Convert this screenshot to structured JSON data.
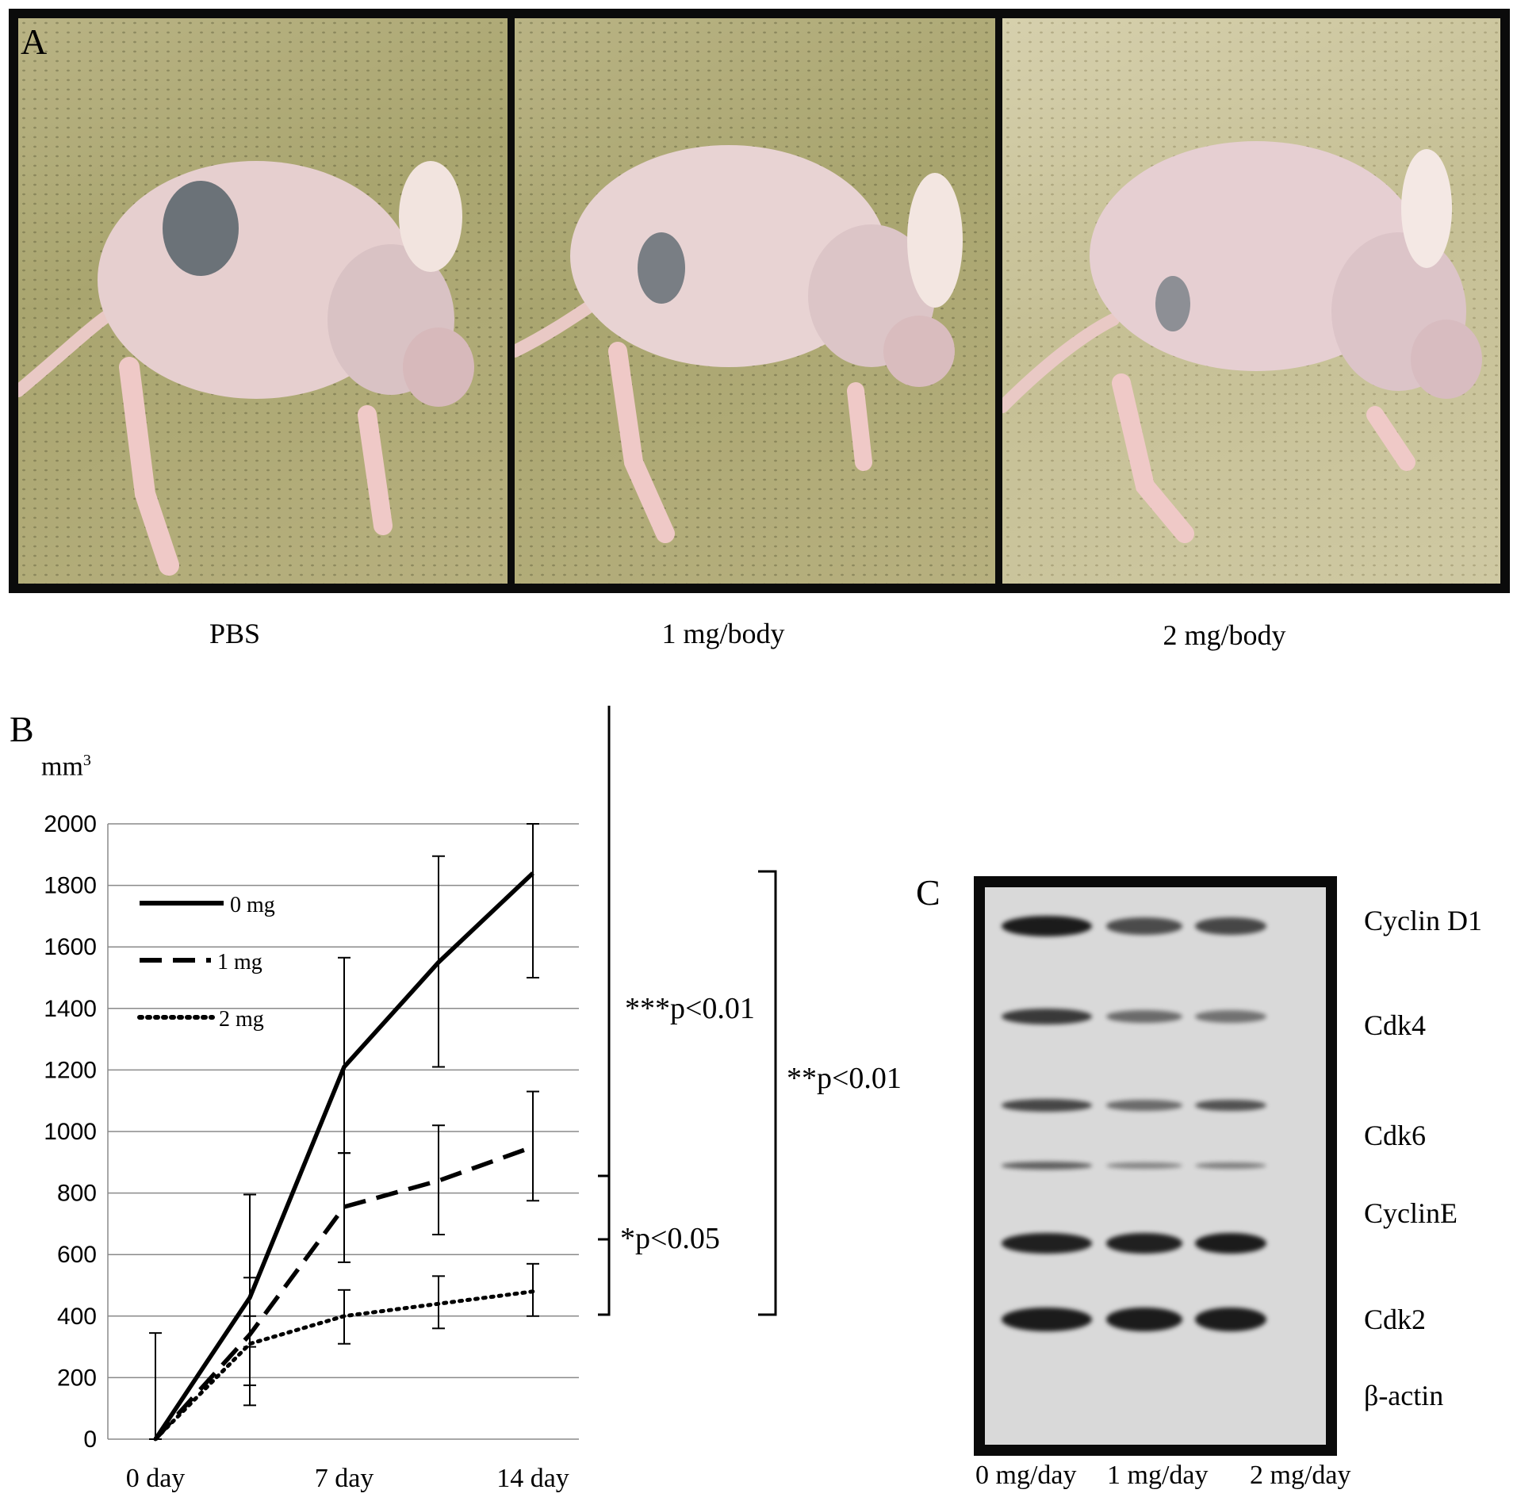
{
  "panel_a": {
    "letter": "A",
    "labels": [
      "PBS",
      "1 mg/body",
      "2 mg/body"
    ]
  },
  "panel_b": {
    "letter": "B",
    "unit": "mm",
    "unit_exp": "3",
    "significance": [
      "***p<0.01",
      "**p<0.01",
      "*p<0.05"
    ]
  },
  "chart_data": {
    "type": "line",
    "x_categories": [
      "0 day",
      "7 day",
      "14 day"
    ],
    "x": [
      0,
      3.5,
      7,
      10.5,
      14
    ],
    "ylim": [
      0,
      2000
    ],
    "yticks": [
      0,
      200,
      400,
      600,
      800,
      1000,
      1200,
      1400,
      1600,
      1800,
      2000
    ],
    "grid": true,
    "legend_position": "top-left",
    "series": [
      {
        "name": "0 mg",
        "style": "solid",
        "values": [
          0,
          460,
          1210,
          1550,
          1840
        ],
        "err_low": [
          0,
          300,
          930,
          1210,
          1500
        ],
        "err_high": [
          345,
          795,
          1565,
          1895,
          2000
        ]
      },
      {
        "name": "1 mg",
        "style": "dashed",
        "values": [
          0,
          340,
          755,
          840,
          950
        ],
        "err_low": [
          0,
          175,
          575,
          665,
          775
        ],
        "err_high": [
          180,
          525,
          930,
          1020,
          1130
        ]
      },
      {
        "name": "2 mg",
        "style": "dotted",
        "values": [
          0,
          310,
          400,
          440,
          480
        ],
        "err_low": [
          0,
          110,
          310,
          360,
          400
        ],
        "err_high": [
          90,
          400,
          485,
          530,
          570
        ]
      }
    ]
  },
  "panel_c": {
    "letter": "C",
    "proteins": [
      "Cyclin D1",
      "Cdk4",
      "Cdk6",
      "CyclinE",
      "Cdk2",
      "β-actin"
    ],
    "lanes": [
      "0 mg/day",
      "1 mg/day",
      "2 mg/day"
    ],
    "band_intensity": [
      [
        1.0,
        0.6,
        0.65
      ],
      [
        0.75,
        0.35,
        0.3
      ],
      [
        0.65,
        0.35,
        0.55
      ],
      [
        0.45,
        0.15,
        0.2
      ],
      [
        0.95,
        0.95,
        1.0
      ],
      [
        1.0,
        1.0,
        1.0
      ]
    ]
  }
}
